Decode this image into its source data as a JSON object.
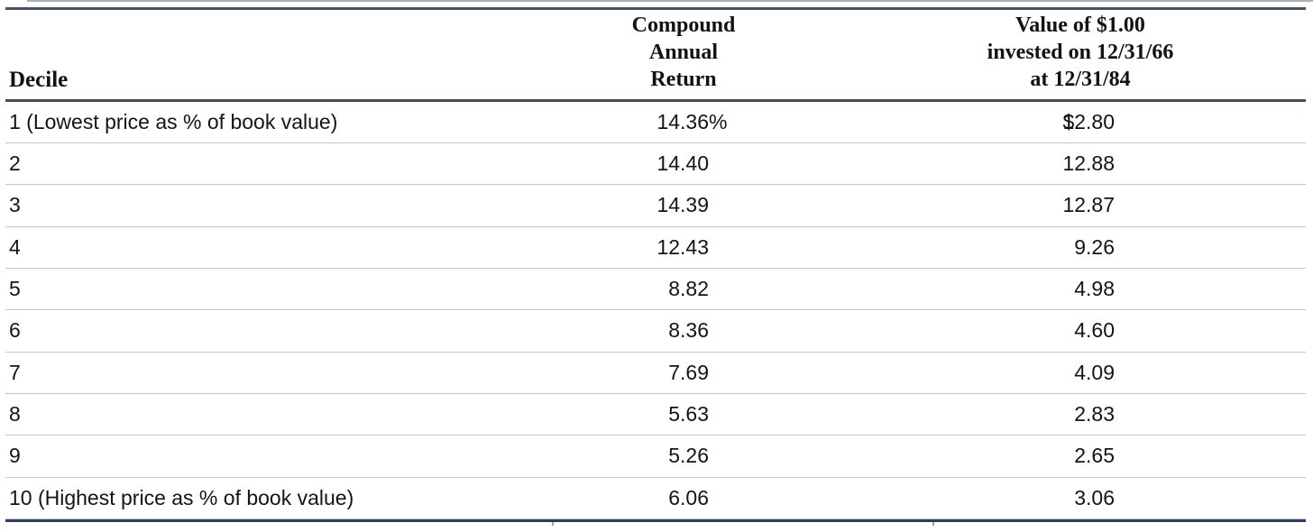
{
  "table": {
    "headers": {
      "decile": "Decile",
      "col2": {
        "line1": "Compound",
        "line2": "Annual",
        "line3": "Return"
      },
      "col3": {
        "line1": "Value of $1.00",
        "line2": "invested on 12/31/66",
        "line3": "at 12/31/84"
      }
    },
    "rows": [
      {
        "decile": "1 (Lowest price as % of book value)",
        "ret": "14.36",
        "ret_suffix": "%",
        "val": "12.80",
        "val_prefix": "$"
      },
      {
        "decile": "2",
        "ret": "14.40",
        "ret_suffix": "",
        "val": "12.88",
        "val_prefix": ""
      },
      {
        "decile": "3",
        "ret": "14.39",
        "ret_suffix": "",
        "val": "12.87",
        "val_prefix": ""
      },
      {
        "decile": "4",
        "ret": "12.43",
        "ret_suffix": "",
        "val": "9.26",
        "val_prefix": ""
      },
      {
        "decile": "5",
        "ret": "8.82",
        "ret_suffix": "",
        "val": "4.98",
        "val_prefix": ""
      },
      {
        "decile": "6",
        "ret": "8.36",
        "ret_suffix": "",
        "val": "4.60",
        "val_prefix": ""
      },
      {
        "decile": "7",
        "ret": "7.69",
        "ret_suffix": "",
        "val": "4.09",
        "val_prefix": ""
      },
      {
        "decile": "8",
        "ret": "5.63",
        "ret_suffix": "",
        "val": "2.83",
        "val_prefix": ""
      },
      {
        "decile": "9",
        "ret": "5.26",
        "ret_suffix": "",
        "val": "2.65",
        "val_prefix": ""
      },
      {
        "decile": "10 (Highest price as % of book value)",
        "ret": "6.06",
        "ret_suffix": "",
        "val": "3.06",
        "val_prefix": ""
      }
    ]
  },
  "colors": {
    "rule_slate": "#44546A",
    "rule_navy": "#2B3D63",
    "row_divider": "#C6C6C6",
    "text": "#141414"
  },
  "chart_data": {
    "type": "table",
    "title": "",
    "columns": [
      "Decile",
      "Compound Annual Return",
      "Value of $1.00 invested on 12/31/66 at 12/31/84"
    ],
    "rows": [
      [
        "1 (Lowest price as % of book value)",
        "14.36%",
        "$12.80"
      ],
      [
        "2",
        "14.40",
        "12.88"
      ],
      [
        "3",
        "14.39",
        "12.87"
      ],
      [
        "4",
        "12.43",
        "9.26"
      ],
      [
        "5",
        "8.82",
        "4.98"
      ],
      [
        "6",
        "8.36",
        "4.60"
      ],
      [
        "7",
        "7.69",
        "4.09"
      ],
      [
        "8",
        "5.63",
        "2.83"
      ],
      [
        "9",
        "5.26",
        "2.65"
      ],
      [
        "10 (Highest price as % of book value)",
        "6.06",
        "3.06"
      ]
    ],
    "compound_annual_return_pct": [
      14.36,
      14.4,
      14.39,
      12.43,
      8.82,
      8.36,
      7.69,
      5.63,
      5.26,
      6.06
    ],
    "value_of_dollar_invested": [
      12.8,
      12.88,
      12.87,
      9.26,
      4.98,
      4.6,
      4.09,
      2.83,
      2.65,
      3.06
    ]
  }
}
